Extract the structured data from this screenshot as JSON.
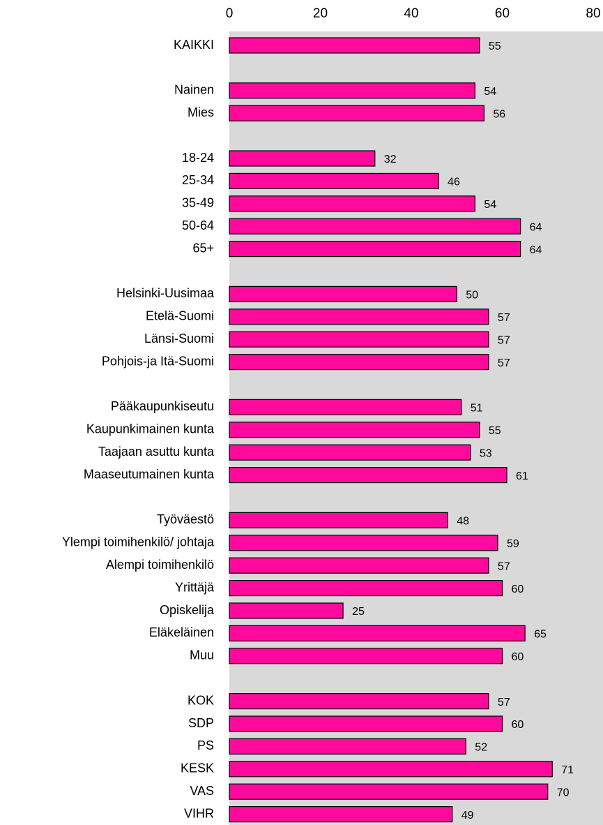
{
  "chart_data": {
    "type": "bar",
    "orientation": "horizontal",
    "categories": [
      "KAIKKI",
      null,
      "Nainen",
      "Mies",
      null,
      "18-24",
      "25-34",
      "35-49",
      "50-64",
      "65+",
      null,
      "Helsinki-Uusimaa",
      "Etelä-Suomi",
      "Länsi-Suomi",
      "Pohjois-ja Itä-Suomi",
      null,
      "Pääkaupunkiseutu",
      "Kaupunkimainen kunta",
      "Taajaan asuttu kunta",
      "Maaseutumainen kunta",
      null,
      "Työväestö",
      "Ylempi toimihenkilö/ johtaja",
      "Alempi toimihenkilö",
      "Yrittäjä",
      "Opiskelija",
      "Eläkeläinen",
      "Muu",
      null,
      "KOK",
      "SDP",
      "PS",
      "KESK",
      "VAS",
      "VIHR"
    ],
    "values": [
      55,
      null,
      54,
      56,
      null,
      32,
      46,
      54,
      64,
      64,
      null,
      50,
      57,
      57,
      57,
      null,
      51,
      55,
      53,
      61,
      null,
      48,
      59,
      57,
      60,
      25,
      65,
      60,
      null,
      57,
      60,
      52,
      71,
      70,
      49
    ],
    "color": "#ff0a9c",
    "xlim": [
      0,
      80
    ],
    "xticks": [
      0,
      20,
      40,
      60,
      80
    ],
    "grid": false
  }
}
